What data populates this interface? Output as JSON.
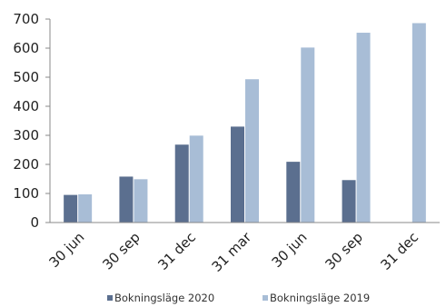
{
  "chart_data": {
    "type": "bar",
    "categories": [
      "30 jun",
      "30 sep",
      "31 dec",
      "31 mar",
      "30 jun",
      "30 sep",
      "31 dec"
    ],
    "series": [
      {
        "name": "Bokningsläge 2020",
        "color": "#5b6f8f",
        "values": [
          95,
          158,
          268,
          330,
          209,
          146,
          null
        ]
      },
      {
        "name": "Bokningsläge 2019",
        "color": "#a8bdd6",
        "values": [
          97,
          149,
          299,
          493,
          602,
          653,
          686
        ]
      }
    ],
    "ylim": [
      0,
      700
    ],
    "yticks": [
      0,
      100,
      200,
      300,
      400,
      500,
      600,
      700
    ],
    "grid": false,
    "legend": "bottom",
    "title": "",
    "xlabel": "",
    "ylabel": ""
  }
}
